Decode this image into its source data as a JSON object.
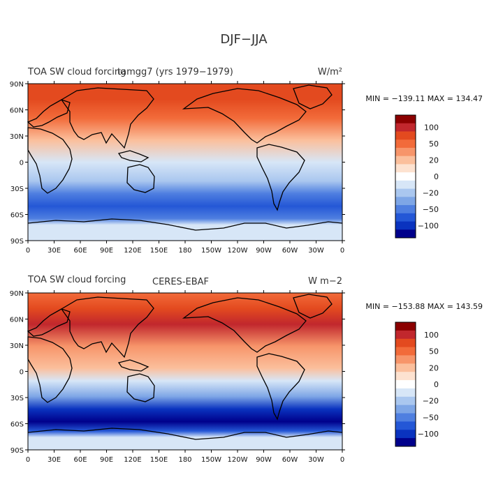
{
  "figure": {
    "title": "DJF−JJA"
  },
  "panels": [
    {
      "variable": "TOA SW cloud forcing",
      "source": "tamgg7 (yrs 1979−1979)",
      "units": "W/m²",
      "stats": "MIN = −139.11 MAX = 134.47",
      "min": -139.11,
      "max": 134.47
    },
    {
      "variable": "TOA SW cloud forcing",
      "source": "CERES-EBAF",
      "units": "W m−2",
      "stats": "MIN = −153.88 MAX = 143.59",
      "min": -153.88,
      "max": 143.59
    }
  ],
  "axes": {
    "lat_ticks": [
      "90N",
      "60N",
      "30N",
      "0",
      "30S",
      "60S",
      "90S"
    ],
    "lon_ticks": [
      "0",
      "30E",
      "60E",
      "90E",
      "120E",
      "150E",
      "180",
      "150W",
      "120W",
      "90W",
      "60W",
      "30W",
      "0"
    ]
  },
  "colorbar": {
    "labels": [
      "100",
      "50",
      "20",
      "0",
      "−20",
      "−50",
      "−100"
    ],
    "colors": [
      "#8b0000",
      "#c1272d",
      "#e34a1f",
      "#f26b3a",
      "#f7956a",
      "#fbbf9c",
      "#fde2d0",
      "#ffffff",
      "#d7e6f7",
      "#aac7ef",
      "#7ea6e6",
      "#4f7fe0",
      "#2457d6",
      "#0a33bf",
      "#00008b"
    ]
  }
}
